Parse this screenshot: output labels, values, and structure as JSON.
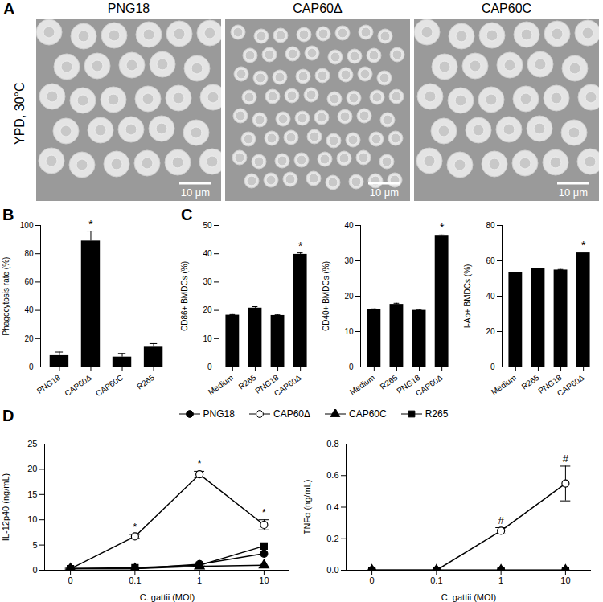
{
  "figure": {
    "panel": "A",
    "row_label": "YPD, 30°C",
    "images": [
      {
        "title": "PNG18",
        "scale_bar": "10 μm"
      },
      {
        "title": "CAP60Δ",
        "scale_bar": "10 μm"
      },
      {
        "title": "CAP60C",
        "scale_bar": "10 μm"
      }
    ]
  },
  "chart_data": [
    {
      "type": "bar",
      "panel": "B",
      "y_label": "Phagocytosis rate (%)",
      "color": "#000000",
      "categories": [
        "PNG18",
        "CAP60Δ",
        "CAP60C",
        "R265"
      ],
      "values": [
        8,
        89,
        7,
        14
      ],
      "errors": [
        2.5,
        7,
        2.5,
        2.5
      ],
      "annotations": [
        {
          "category": "CAP60Δ",
          "text": "*"
        }
      ],
      "ylim": [
        0,
        100
      ],
      "yticks": [
        0,
        20,
        40,
        60,
        80,
        100
      ]
    },
    {
      "type": "bar",
      "panel": "C",
      "y_label": "CD86+ BMDCs (%)",
      "color": "#000000",
      "categories": [
        "Medium",
        "R265",
        "PNG18",
        "CAP60Δ"
      ],
      "values": [
        18.3,
        20.8,
        18.2,
        39.8
      ],
      "errors": [
        0.2,
        0.5,
        0.2,
        0.5
      ],
      "annotations": [
        {
          "category": "CAP60Δ",
          "text": "*"
        }
      ],
      "ylim": [
        0,
        50
      ],
      "yticks": [
        0,
        10,
        20,
        30,
        40,
        50
      ]
    },
    {
      "type": "bar",
      "y_label": "CD40+ BMDCs (%)",
      "color": "#000000",
      "categories": [
        "Medium",
        "R265",
        "PNG18",
        "CAP60Δ"
      ],
      "values": [
        16.2,
        17.7,
        16.0,
        37.0
      ],
      "errors": [
        0.2,
        0.3,
        0.2,
        0.3
      ],
      "annotations": [
        {
          "category": "CAP60Δ",
          "text": "*"
        }
      ],
      "ylim": [
        0,
        40
      ],
      "yticks": [
        0,
        10,
        20,
        30,
        40
      ]
    },
    {
      "type": "bar",
      "y_label": "I-Ab+ BMDCs (%)",
      "color": "#000000",
      "categories": [
        "Medium",
        "R265",
        "PNG18",
        "CAP60Δ"
      ],
      "values": [
        53.3,
        55.6,
        54.8,
        64.5
      ],
      "errors": [
        0.3,
        0.3,
        0.3,
        0.5
      ],
      "annotations": [
        {
          "category": "CAP60Δ",
          "text": "*"
        }
      ],
      "ylim": [
        0,
        80
      ],
      "yticks": [
        0,
        20,
        40,
        60,
        80
      ]
    },
    {
      "type": "line",
      "panel": "D",
      "x_label": "C. gattii (MOI)",
      "y_label": "IL-12p40 (ng/mL)",
      "legend": "top",
      "categories": [
        "0",
        "0.1",
        "1",
        "10"
      ],
      "series": [
        {
          "name": "PNG18",
          "color": "#000000",
          "marker": "circle",
          "values": [
            0.3,
            0.3,
            1.2,
            3.3
          ]
        },
        {
          "name": "CAP60Δ",
          "color": "#000000",
          "marker": "circle-open",
          "values": [
            0.3,
            6.7,
            19,
            9
          ],
          "errors": [
            0.1,
            0.4,
            0.6,
            1.0
          ]
        },
        {
          "name": "CAP60C",
          "color": "#000000",
          "marker": "triangle",
          "values": [
            0.3,
            0.3,
            0.8,
            1.0
          ]
        },
        {
          "name": "R265",
          "color": "#000000",
          "marker": "square",
          "values": [
            0.3,
            0.5,
            1.0,
            4.8
          ]
        }
      ],
      "annotations": [
        {
          "category": "0.1",
          "series": "CAP60Δ",
          "text": "*"
        },
        {
          "category": "1",
          "series": "CAP60Δ",
          "text": "*"
        },
        {
          "category": "10",
          "series": "CAP60Δ",
          "text": "*"
        }
      ],
      "ylim": [
        0,
        25
      ],
      "yticks": [
        0,
        5,
        10,
        15,
        20,
        25
      ]
    },
    {
      "type": "line",
      "x_label": "C. gattii (MOI)",
      "y_label": "TNFα (ng/mL)",
      "categories": [
        "0",
        "0.1",
        "1",
        "10"
      ],
      "series": [
        {
          "name": "PNG18",
          "color": "#000000",
          "marker": "circle",
          "values": [
            0,
            0,
            0,
            0
          ]
        },
        {
          "name": "CAP60Δ",
          "color": "#000000",
          "marker": "circle-open",
          "values": [
            0,
            0,
            0.25,
            0.55
          ],
          "errors": [
            0,
            0,
            0.02,
            0.11
          ]
        },
        {
          "name": "CAP60C",
          "color": "#000000",
          "marker": "triangle",
          "values": [
            0,
            0,
            0,
            0
          ]
        },
        {
          "name": "R265",
          "color": "#000000",
          "marker": "square",
          "values": [
            0,
            0,
            0,
            0
          ]
        }
      ],
      "annotations": [
        {
          "category": "1",
          "series": "CAP60Δ",
          "text": "#"
        },
        {
          "category": "10",
          "series": "CAP60Δ",
          "text": "#"
        }
      ],
      "ylim": [
        0,
        0.8
      ],
      "yticks": [
        {
          "value": 0,
          "label": "0.0"
        },
        0.2,
        0.4,
        0.6,
        0.8
      ]
    }
  ]
}
